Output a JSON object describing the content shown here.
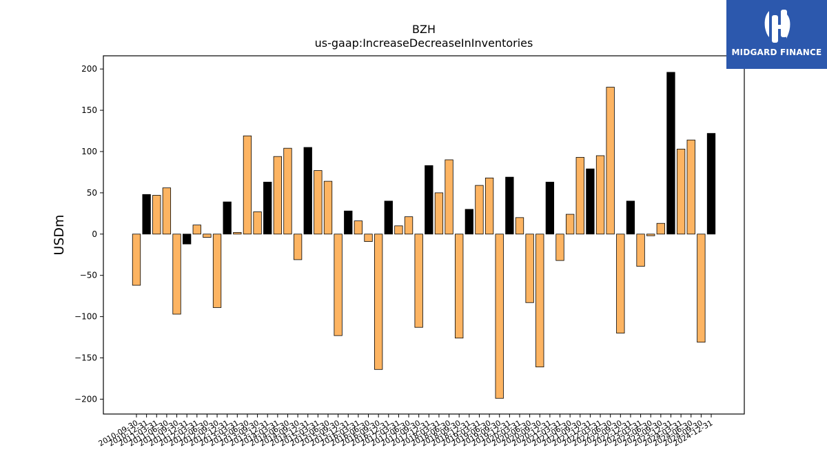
{
  "brand": {
    "name": "MIDGARD FINANCE",
    "logo_color": "#2c58ad"
  },
  "chart_data": {
    "type": "bar",
    "title": "BZH",
    "subtitle": "us-gaap:IncreaseDecreaseInInventories",
    "ylabel": "USDm",
    "xlabel": "",
    "ylim": [
      -218,
      216
    ],
    "yticks": [
      200,
      150,
      100,
      50,
      0,
      -50,
      -100,
      -150,
      -200
    ],
    "grid": false,
    "colors": {
      "annual": "#000000",
      "quarterly": "#fdb462"
    },
    "categories": [
      "2010-09-30",
      "2010-12-31",
      "2011-03-31",
      "2011-06-30",
      "2011-09-30",
      "2011-12-31",
      "2012-03-31",
      "2012-06-30",
      "2012-09-30",
      "2012-12-31",
      "2013-03-31",
      "2013-06-30",
      "2013-09-30",
      "2013-12-31",
      "2014-03-31",
      "2014-06-30",
      "2014-09-30",
      "2014-12-31",
      "2015-03-31",
      "2015-06-30",
      "2015-09-30",
      "2015-12-31",
      "2016-03-31",
      "2016-06-30",
      "2016-09-30",
      "2016-12-31",
      "2017-03-31",
      "2017-06-30",
      "2017-09-30",
      "2017-12-31",
      "2018-03-31",
      "2018-06-30",
      "2018-09-30",
      "2018-12-31",
      "2019-03-31",
      "2019-06-30",
      "2019-09-30",
      "2019-12-31",
      "2020-03-31",
      "2020-06-30",
      "2020-09-30",
      "2020-12-31",
      "2021-03-31",
      "2021-06-30",
      "2021-09-30",
      "2021-12-31",
      "2022-03-31",
      "2022-06-30",
      "2022-09-30",
      "2022-12-31",
      "2023-03-31",
      "2023-06-30",
      "2023-09-30",
      "2023-12-31",
      "2024-03-31",
      "2024-06-30",
      "2024-09-30",
      "2024-12-31"
    ],
    "values": [
      -62,
      48,
      47,
      56,
      -97,
      -12,
      11,
      -4,
      -89,
      39,
      2,
      119,
      27,
      63,
      94,
      104,
      -31,
      105,
      77,
      64,
      -123,
      28,
      16,
      -9,
      -164,
      40,
      10,
      21,
      -113,
      83,
      50,
      90,
      -126,
      30,
      59,
      68,
      -199,
      69,
      20,
      -83,
      -161,
      63,
      -32,
      24,
      93,
      79,
      95,
      178,
      -120,
      40,
      -39,
      -2,
      13,
      196,
      103,
      114,
      -131,
      122
    ],
    "annual": [
      false,
      true,
      false,
      false,
      false,
      true,
      false,
      false,
      false,
      true,
      false,
      false,
      false,
      true,
      false,
      false,
      false,
      true,
      false,
      false,
      false,
      true,
      false,
      false,
      false,
      true,
      false,
      false,
      false,
      true,
      false,
      false,
      false,
      true,
      false,
      false,
      false,
      true,
      false,
      false,
      false,
      true,
      false,
      false,
      false,
      true,
      false,
      false,
      false,
      true,
      false,
      false,
      false,
      true,
      false,
      false,
      false,
      true
    ]
  }
}
